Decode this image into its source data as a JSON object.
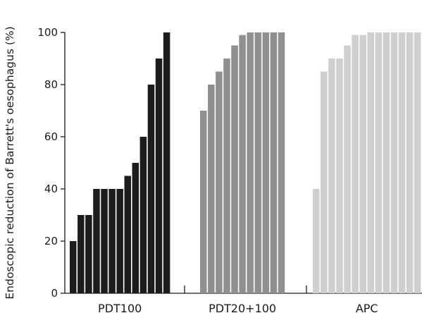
{
  "chart_data": {
    "type": "bar",
    "title": "",
    "xlabel": "",
    "ylabel": "Endoscopic reduction of Barrett's oesophagus (%)",
    "ylim": [
      0,
      100
    ],
    "yticks": [
      "0",
      "20",
      "40",
      "60",
      "80",
      "100"
    ],
    "grid": false,
    "legend": "none",
    "groups": [
      {
        "label": "PDT100",
        "color": "#1c1c1c",
        "values": [
          20,
          30,
          30,
          40,
          40,
          40,
          40,
          45,
          50,
          60,
          80,
          90,
          100
        ]
      },
      {
        "label": "PDT20+100",
        "color": "#8f8f8f",
        "values": [
          70,
          80,
          85,
          90,
          95,
          99,
          100,
          100,
          100,
          100,
          100
        ]
      },
      {
        "label": "APC",
        "color": "#cfcfcf",
        "values": [
          40,
          85,
          90,
          90,
          95,
          99,
          99,
          100,
          100,
          100,
          100,
          100,
          100,
          100
        ]
      }
    ]
  }
}
